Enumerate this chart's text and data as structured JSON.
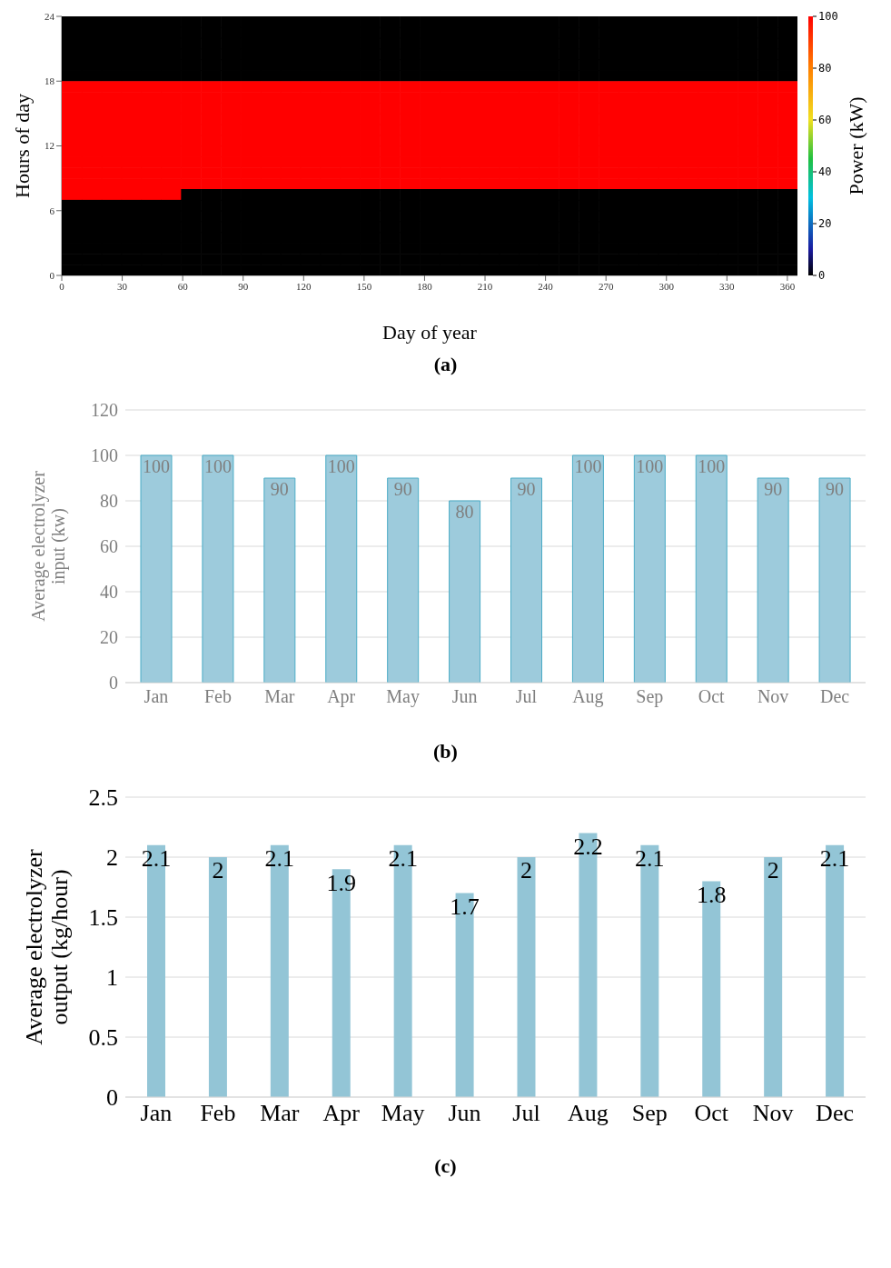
{
  "chart_data": [
    {
      "type": "heatmap",
      "title": "(a)",
      "xlabel": "Day of year",
      "ylabel": "Hours of day",
      "clabel": "Power (kW)",
      "xlim": [
        0,
        365
      ],
      "xticks": [
        0,
        30,
        60,
        90,
        120,
        150,
        180,
        210,
        240,
        270,
        300,
        330,
        360
      ],
      "ylim": [
        0,
        24
      ],
      "yticks": [
        0,
        6,
        12,
        18,
        24
      ],
      "clim": [
        0,
        100
      ],
      "cticks": [
        0,
        20,
        40,
        60,
        80,
        100
      ],
      "cells": [
        [
          0,
          0,
          0,
          0,
          0,
          0,
          0,
          0,
          0,
          0,
          0,
          0,
          0,
          0,
          0,
          0,
          0,
          0,
          0,
          0,
          0,
          0,
          0,
          0,
          0,
          0,
          0,
          0,
          0,
          0,
          0,
          0,
          0,
          0,
          0,
          0,
          0
        ],
        [
          0,
          0,
          0,
          0,
          0,
          0,
          0,
          0,
          0,
          0,
          0,
          0,
          0,
          0,
          0,
          0,
          0,
          0,
          0,
          0,
          0,
          0,
          0,
          0,
          0,
          0,
          0,
          0,
          0,
          0,
          0,
          0,
          0,
          0,
          0,
          0,
          0
        ],
        [
          0,
          0,
          0,
          0,
          0,
          0,
          0,
          0,
          0,
          0,
          0,
          0,
          0,
          0,
          0,
          0,
          0,
          0,
          0,
          0,
          0,
          0,
          0,
          0,
          0,
          0,
          0,
          0,
          0,
          0,
          0,
          0,
          0,
          0,
          0,
          0,
          0
        ],
        [
          0,
          0,
          0,
          0,
          0,
          0,
          0,
          0,
          0,
          0,
          0,
          0,
          0,
          0,
          0,
          0,
          0,
          0,
          0,
          0,
          0,
          0,
          0,
          0,
          0,
          0,
          0,
          0,
          0,
          0,
          0,
          0,
          0,
          0,
          0,
          0,
          0
        ],
        [
          0,
          0,
          0,
          0,
          0,
          0,
          0,
          0,
          0,
          0,
          0,
          0,
          0,
          0,
          0,
          0,
          0,
          0,
          0,
          0,
          0,
          0,
          0,
          0,
          0,
          0,
          0,
          0,
          0,
          0,
          0,
          0,
          0,
          0,
          0,
          0,
          0
        ],
        [
          0,
          0,
          0,
          0,
          0,
          0,
          0,
          0,
          0,
          0,
          0,
          0,
          0,
          0,
          0,
          0,
          0,
          0,
          0,
          0,
          0,
          0,
          0,
          0,
          0,
          0,
          0,
          0,
          0,
          0,
          0,
          0,
          0,
          0,
          0,
          0,
          0
        ],
        [
          100,
          100,
          100,
          100,
          100,
          100,
          100,
          100,
          100,
          100,
          100,
          100,
          100,
          100,
          100,
          100,
          100,
          100,
          100,
          100,
          100,
          100,
          100,
          100,
          100,
          100,
          100,
          100,
          100,
          100,
          100,
          100,
          100,
          100,
          100,
          100,
          100
        ],
        [
          100,
          100,
          100,
          100,
          100,
          100,
          100,
          100,
          100,
          100,
          100,
          100,
          100,
          100,
          100,
          100,
          100,
          100,
          100,
          100,
          100,
          100,
          100,
          100,
          100,
          100,
          100,
          100,
          100,
          100,
          100,
          100,
          100,
          100,
          100,
          100,
          100
        ],
        [
          100,
          100,
          100,
          100,
          100,
          100,
          100,
          100,
          100,
          100,
          100,
          100,
          100,
          100,
          100,
          100,
          100,
          100,
          100,
          100,
          100,
          100,
          100,
          100,
          100,
          100,
          100,
          100,
          100,
          100,
          100,
          100,
          100,
          100,
          100,
          100,
          100
        ],
        [
          100,
          100,
          100,
          100,
          100,
          100,
          100,
          100,
          100,
          100,
          100,
          100,
          100,
          100,
          100,
          100,
          100,
          100,
          100,
          100,
          100,
          100,
          100,
          100,
          100,
          100,
          100,
          100,
          100,
          100,
          100,
          100,
          100,
          100,
          100,
          100,
          100
        ],
        [
          100,
          100,
          100,
          100,
          100,
          100,
          100,
          100,
          100,
          100,
          100,
          100,
          100,
          100,
          100,
          100,
          100,
          100,
          100,
          100,
          100,
          100,
          100,
          100,
          100,
          100,
          100,
          100,
          100,
          100,
          100,
          100,
          100,
          100,
          100,
          100,
          100
        ],
        [
          100,
          100,
          100,
          100,
          100,
          100,
          100,
          100,
          100,
          100,
          100,
          100,
          100,
          100,
          100,
          100,
          100,
          100,
          100,
          100,
          100,
          100,
          100,
          100,
          100,
          100,
          100,
          100,
          100,
          100,
          100,
          100,
          100,
          100,
          100,
          100,
          100
        ],
        [
          100,
          100,
          100,
          100,
          100,
          100,
          100,
          100,
          100,
          100,
          100,
          100,
          100,
          100,
          100,
          100,
          100,
          100,
          100,
          100,
          100,
          100,
          100,
          100,
          100,
          100,
          100,
          100,
          100,
          100,
          100,
          100,
          100,
          100,
          100,
          100,
          100
        ],
        [
          100,
          100,
          100,
          100,
          100,
          100,
          100,
          100,
          100,
          100,
          100,
          100,
          100,
          100,
          100,
          100,
          100,
          100,
          100,
          100,
          100,
          100,
          100,
          100,
          100,
          100,
          100,
          100,
          100,
          100,
          100,
          100,
          100,
          100,
          100,
          100,
          100
        ],
        [
          100,
          100,
          100,
          100,
          100,
          100,
          100,
          100,
          100,
          100,
          100,
          100,
          100,
          100,
          100,
          100,
          100,
          100,
          100,
          100,
          100,
          100,
          100,
          100,
          100,
          100,
          100,
          100,
          100,
          100,
          100,
          100,
          100,
          100,
          100,
          100,
          100
        ],
        [
          100,
          100,
          100,
          100,
          100,
          100,
          100,
          100,
          100,
          100,
          100,
          100,
          100,
          100,
          100,
          100,
          100,
          100,
          100,
          100,
          100,
          100,
          100,
          100,
          100,
          100,
          100,
          100,
          100,
          100,
          100,
          100,
          100,
          100,
          100,
          100,
          100
        ],
        [
          100,
          100,
          100,
          100,
          100,
          100,
          0,
          0,
          0,
          0,
          0,
          0,
          0,
          0,
          0,
          0,
          0,
          0,
          0,
          0,
          0,
          0,
          0,
          0,
          0,
          0,
          0,
          0,
          0,
          0,
          0,
          0,
          0,
          0,
          0,
          0,
          0
        ],
        [
          0,
          0,
          0,
          0,
          0,
          0,
          0,
          0,
          0,
          0,
          0,
          0,
          0,
          0,
          0,
          0,
          0,
          0,
          0,
          0,
          0,
          0,
          0,
          0,
          0,
          0,
          0,
          0,
          0,
          0,
          0,
          0,
          0,
          0,
          0,
          0,
          0
        ],
        [
          0,
          0,
          0,
          0,
          0,
          0,
          0,
          0,
          0,
          0,
          0,
          0,
          0,
          0,
          0,
          0,
          0,
          0,
          0,
          0,
          0,
          0,
          0,
          0,
          0,
          0,
          0,
          0,
          0,
          0,
          0,
          0,
          0,
          0,
          0,
          0,
          0
        ],
        [
          0,
          0,
          0,
          0,
          0,
          0,
          0,
          0,
          0,
          0,
          0,
          0,
          0,
          0,
          0,
          0,
          0,
          0,
          0,
          0,
          0,
          0,
          0,
          0,
          0,
          0,
          0,
          0,
          0,
          0,
          0,
          0,
          0,
          0,
          0,
          0,
          0
        ],
        [
          0,
          0,
          0,
          0,
          0,
          0,
          0,
          0,
          0,
          0,
          0,
          0,
          0,
          0,
          0,
          0,
          0,
          0,
          0,
          0,
          0,
          0,
          0,
          0,
          0,
          0,
          0,
          0,
          0,
          0,
          0,
          0,
          0,
          0,
          0,
          0,
          0
        ],
        [
          0,
          0,
          0,
          0,
          0,
          0,
          0,
          0,
          0,
          0,
          0,
          0,
          0,
          0,
          0,
          0,
          0,
          0,
          0,
          0,
          0,
          0,
          0,
          0,
          0,
          0,
          0,
          0,
          0,
          0,
          0,
          0,
          0,
          0,
          0,
          0,
          0
        ],
        [
          0,
          0,
          0,
          0,
          0,
          0,
          0,
          0,
          0,
          0,
          0,
          0,
          0,
          0,
          0,
          0,
          0,
          0,
          0,
          0,
          0,
          0,
          0,
          0,
          0,
          0,
          0,
          0,
          0,
          0,
          0,
          0,
          0,
          0,
          0,
          0,
          0
        ],
        [
          0,
          0,
          0,
          0,
          0,
          0,
          0,
          0,
          0,
          0,
          0,
          0,
          0,
          0,
          0,
          0,
          0,
          0,
          0,
          0,
          0,
          0,
          0,
          0,
          0,
          0,
          0,
          0,
          0,
          0,
          0,
          0,
          0,
          0,
          0,
          0,
          0
        ]
      ]
    },
    {
      "type": "bar",
      "title": "(b)",
      "ylabel": "Average electrolyzer input (kw)",
      "categories": [
        "Jan",
        "Feb",
        "Mar",
        "Apr",
        "May",
        "Jun",
        "Jul",
        "Aug",
        "Sep",
        "Oct",
        "Nov",
        "Dec"
      ],
      "values": [
        100,
        100,
        90,
        100,
        90,
        80,
        90,
        100,
        100,
        100,
        90,
        90
      ],
      "color": "#9dcbdc",
      "ylim": [
        0,
        120
      ],
      "yticks": [
        0,
        20,
        40,
        60,
        80,
        100,
        120
      ],
      "grid": "y",
      "data_labels": true
    },
    {
      "type": "bar",
      "title": "(c)",
      "ylabel": "Average electrolyzer output (kg/hour)",
      "categories": [
        "Jan",
        "Feb",
        "Mar",
        "Apr",
        "May",
        "Jun",
        "Jul",
        "Aug",
        "Sep",
        "Oct",
        "Nov",
        "Dec"
      ],
      "values": [
        2.1,
        2,
        2.1,
        1.9,
        2.1,
        1.7,
        2,
        2.2,
        2.1,
        1.8,
        2,
        2.1
      ],
      "color": "#93c5d6",
      "ylim": [
        0,
        2.5
      ],
      "yticks": [
        0,
        0.5,
        1,
        1.5,
        2,
        2.5
      ],
      "grid": "y",
      "data_labels": true
    }
  ]
}
